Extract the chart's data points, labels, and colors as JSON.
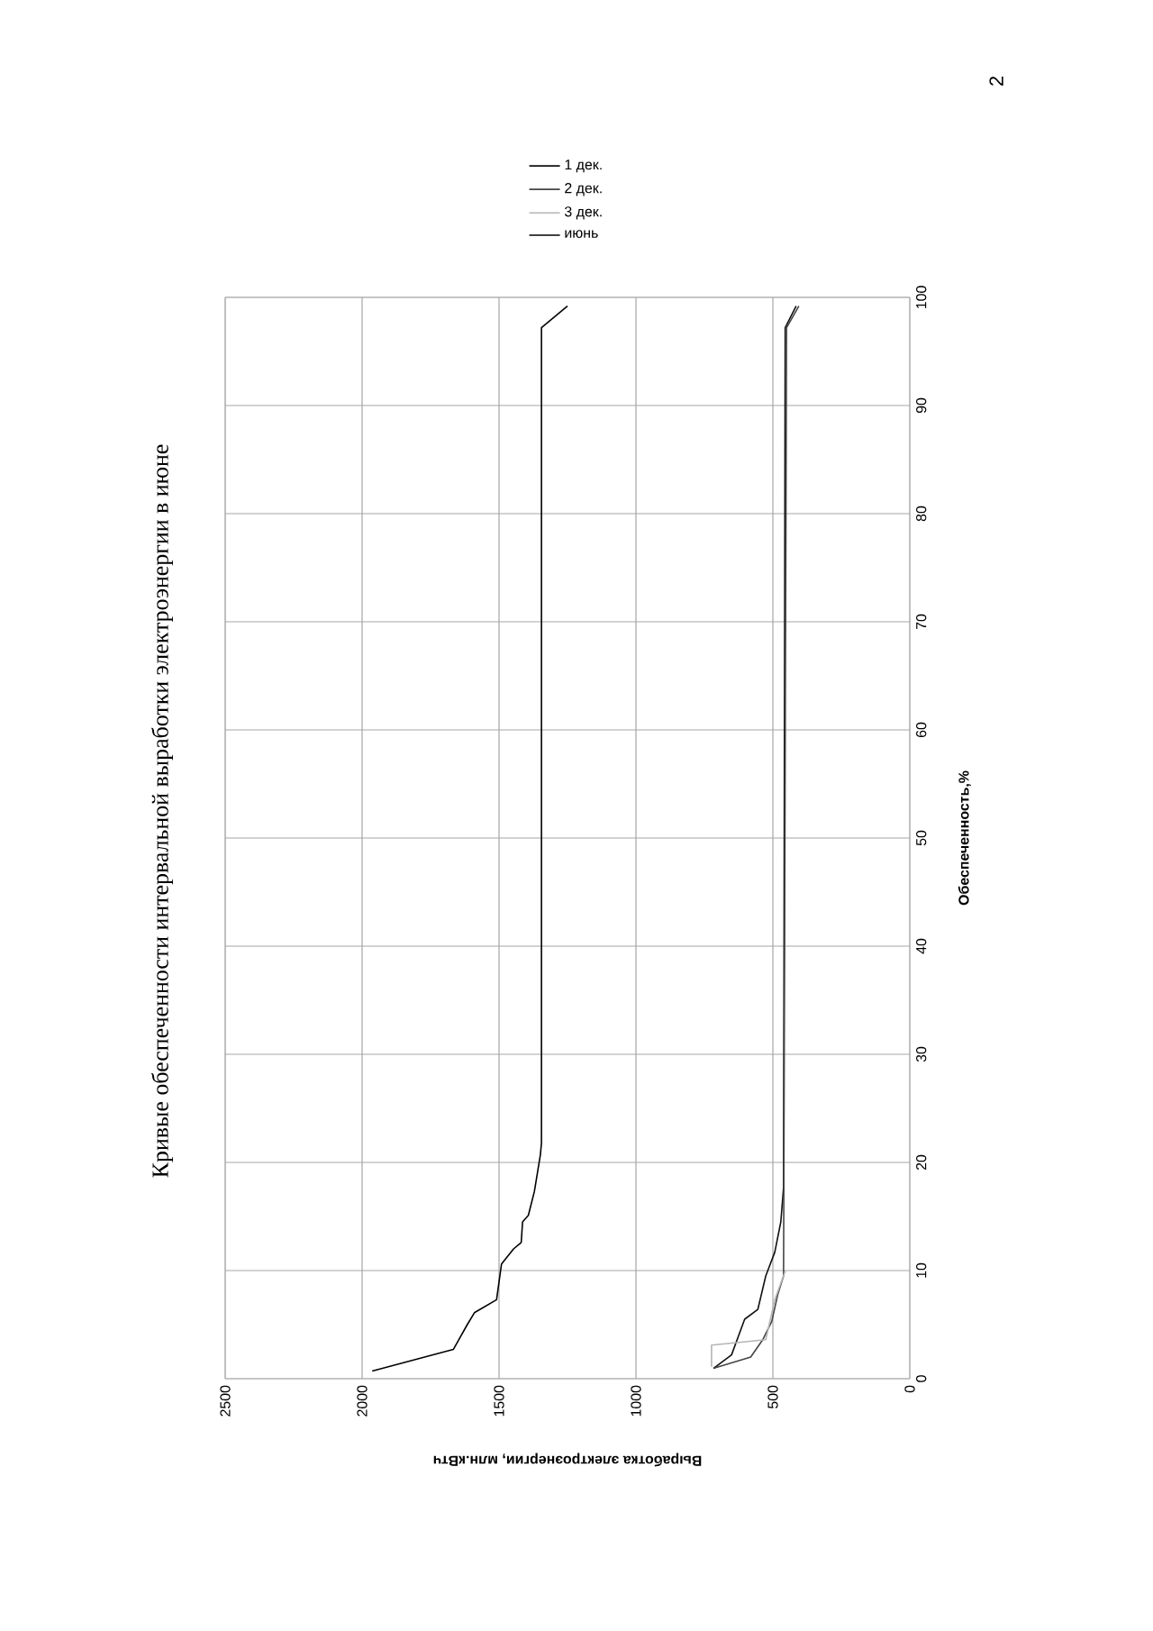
{
  "chart_data": {
    "type": "line",
    "title": "Кривые обеспеченности интервальной выработки электроэнергии в июне",
    "xlabel": "Выработка электроэнергии, млн.кВтч",
    "ylabel": "Обеспеченность,%",
    "annotations": [
      "2"
    ],
    "xlim": [
      2500,
      0
    ],
    "xticks": [
      0,
      500,
      1000,
      1500,
      2000,
      2500
    ],
    "ylim": [
      0,
      100
    ],
    "yticks": [
      0,
      10,
      20,
      30,
      40,
      50,
      60,
      70,
      80,
      90,
      100
    ],
    "grid": true,
    "legend": "top",
    "marker": "none",
    "line_style": "solid",
    "series": [
      {
        "name": "1 дек.",
        "color": "#111111",
        "x": [
          717,
          651,
          603,
          555,
          526,
          493,
          471,
          461,
          455,
          415
        ],
        "values": [
          0.95,
          2.2,
          5.5,
          6.4,
          9.5,
          11.7,
          14.5,
          17.7,
          97.2,
          99.2
        ]
      },
      {
        "name": "2 дек.",
        "color": "#444444",
        "x": [
          717,
          581,
          537,
          504,
          482,
          461,
          450,
          405
        ],
        "values": [
          0.95,
          2.0,
          3.6,
          5.3,
          7.8,
          9.5,
          97.2,
          99.2
        ]
      },
      {
        "name": "3 дек.",
        "color": "#b5b5b5",
        "x": [
          724,
          724,
          526,
          493,
          454
        ],
        "values": [
          1.1,
          3.1,
          3.6,
          7.3,
          10
        ]
      },
      {
        "name": "июнь",
        "color": "#000000",
        "x": [
          1963,
          1667,
          1616,
          1590,
          1509,
          1491,
          1447,
          1419,
          1414,
          1393,
          1371,
          1349,
          1345,
          1345,
          1250
        ],
        "values": [
          0.7,
          2.7,
          5.0,
          6.1,
          7.3,
          10.6,
          12.0,
          12.6,
          14.5,
          15.1,
          17.3,
          20.7,
          21.8,
          97.2,
          99.2
        ]
      }
    ]
  }
}
